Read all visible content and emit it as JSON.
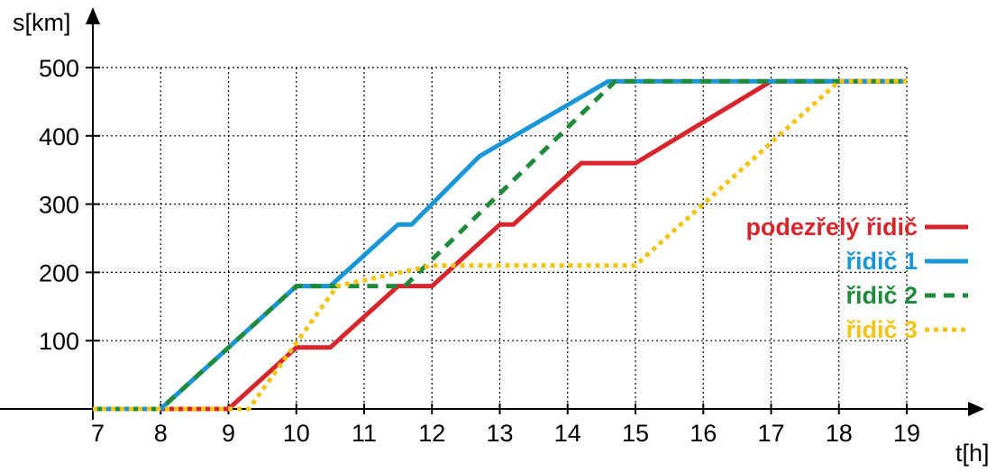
{
  "chart_data": {
    "type": "line",
    "xlabel": "t[h]",
    "ylabel": "s[km]",
    "xlim": [
      7,
      19
    ],
    "ylim": [
      0,
      500
    ],
    "x_ticks": [
      "7",
      "8",
      "9",
      "10",
      "11",
      "12",
      "13",
      "14",
      "15",
      "16",
      "17",
      "18",
      "19"
    ],
    "y_ticks": [
      "100",
      "200",
      "300",
      "400",
      "500"
    ],
    "grid": "dotted",
    "legend_position": "right",
    "series": [
      {
        "name": "podezřelý řidič",
        "color": "#d7262b",
        "style": "solid",
        "points": [
          [
            7,
            0
          ],
          [
            9,
            0
          ],
          [
            10,
            90
          ],
          [
            10.5,
            90
          ],
          [
            11.5,
            180
          ],
          [
            12,
            180
          ],
          [
            13,
            270
          ],
          [
            13.2,
            270
          ],
          [
            14.2,
            360
          ],
          [
            15,
            360
          ],
          [
            17,
            480
          ],
          [
            19,
            480
          ]
        ]
      },
      {
        "name": "řidič 1",
        "color": "#1a96d6",
        "style": "solid",
        "points": [
          [
            7,
            0
          ],
          [
            8,
            0
          ],
          [
            10,
            180
          ],
          [
            10.5,
            180
          ],
          [
            11.5,
            270
          ],
          [
            11.7,
            270
          ],
          [
            12.7,
            370
          ],
          [
            14.6,
            480
          ],
          [
            19,
            480
          ]
        ]
      },
      {
        "name": "řidič 2",
        "color": "#1f8a3c",
        "style": "dashed",
        "points": [
          [
            7,
            0
          ],
          [
            8,
            0
          ],
          [
            10,
            180
          ],
          [
            11.6,
            180
          ],
          [
            14.7,
            480
          ],
          [
            19,
            480
          ]
        ]
      },
      {
        "name": "řidič 3",
        "color": "#f2c418",
        "style": "dotted",
        "points": [
          [
            7,
            0
          ],
          [
            9.3,
            0
          ],
          [
            10.6,
            180
          ],
          [
            12,
            210
          ],
          [
            15,
            210
          ],
          [
            18,
            480
          ],
          [
            19,
            480
          ]
        ]
      }
    ]
  }
}
